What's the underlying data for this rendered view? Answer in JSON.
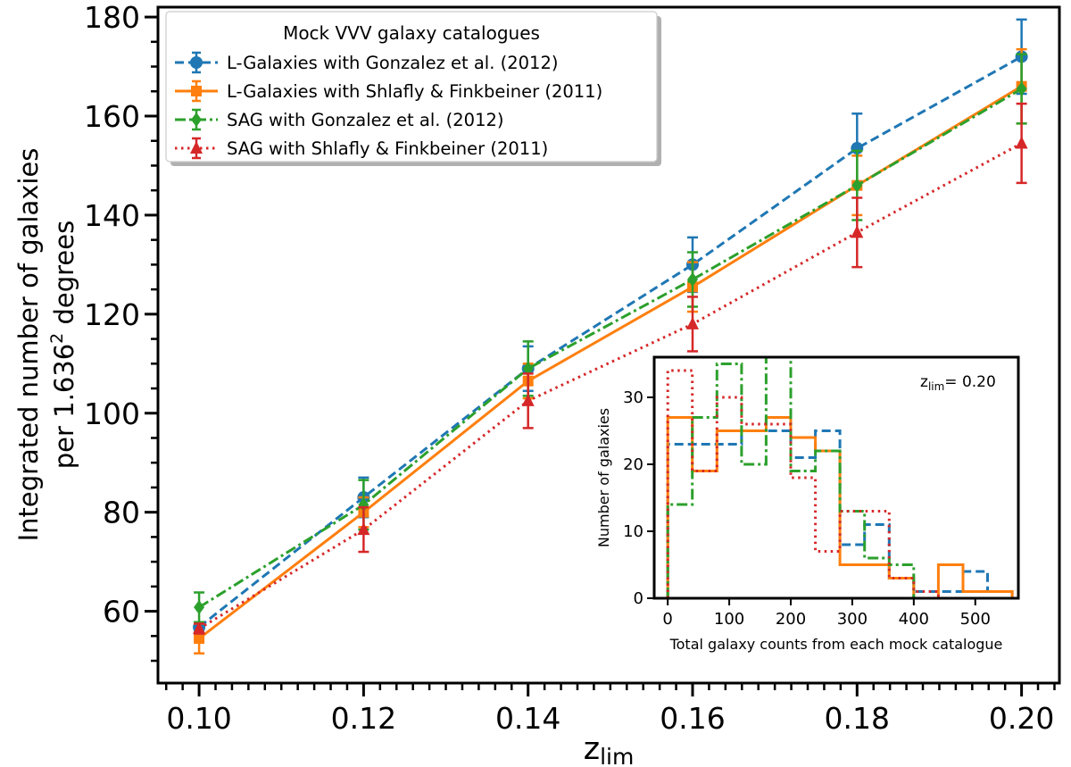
{
  "chart_data": [
    {
      "type": "line",
      "title": "",
      "xlabel": "z",
      "xlabel_sub": "lim",
      "ylabel_line1": "Integrated number of galaxies",
      "ylabel_line2_pre": "per 1.636",
      "ylabel_line2_sup": "2",
      "ylabel_line2_post": " degrees",
      "xlim": [
        0.095,
        0.2046
      ],
      "ylim": [
        45.5,
        182
      ],
      "x": [
        0.1,
        0.12,
        0.14,
        0.16,
        0.18,
        0.2
      ],
      "xticks": [
        0.1,
        0.12,
        0.14,
        0.16,
        0.18,
        0.2
      ],
      "xtick_labels": [
        "0.10",
        "0.12",
        "0.14",
        "0.16",
        "0.18",
        "0.20"
      ],
      "yticks": [
        60,
        80,
        100,
        120,
        140,
        160,
        180
      ],
      "ytick_labels": [
        "60",
        "80",
        "100",
        "120",
        "140",
        "160",
        "180"
      ],
      "grid": false,
      "legend": {
        "title": "Mock VVV galaxy catalogues",
        "position": "upper-left"
      },
      "series": [
        {
          "name": "L-Galaxies with Gonzalez et al. (2012)",
          "color": "#1f77b4",
          "linestyle": "dashed",
          "marker": "circle",
          "values": [
            56.8,
            83.0,
            109.0,
            130.0,
            153.5,
            172.0
          ],
          "errors": [
            1.0,
            4.0,
            4.5,
            5.5,
            7.0,
            7.5
          ]
        },
        {
          "name": "L-Galaxies with Shlafly & Finkbeiner (2011)",
          "color": "#ff7f0e",
          "linestyle": "solid",
          "marker": "square",
          "values": [
            54.5,
            80.0,
            106.5,
            125.5,
            146.0,
            166.0
          ],
          "errors": [
            3.0,
            3.0,
            3.5,
            5.0,
            6.0,
            7.5
          ]
        },
        {
          "name": "SAG with Gonzalez et al. (2012)",
          "color": "#2ca02c",
          "linestyle": "dashdot",
          "marker": "diamond",
          "values": [
            60.8,
            81.5,
            109.0,
            127.0,
            146.0,
            165.5
          ],
          "errors": [
            3.0,
            5.0,
            5.5,
            5.5,
            7.0,
            7.0
          ]
        },
        {
          "name": "SAG with Shlafly & Finkbeiner (2011)",
          "color": "#d62728",
          "linestyle": "dotted",
          "marker": "triangle",
          "values": [
            56.5,
            76.5,
            102.5,
            118.0,
            136.5,
            154.5
          ],
          "errors": [
            1.0,
            4.5,
            5.5,
            5.5,
            7.0,
            8.0
          ]
        }
      ]
    },
    {
      "type": "histogram",
      "title": "",
      "annotation": "= 0.20",
      "annotation_symbol": "z",
      "annotation_sub": "lim",
      "xlabel": "Total galaxy counts from each mock catalogue",
      "ylabel": "Number of galaxies",
      "xlim": [
        -22,
        570
      ],
      "ylim": [
        0,
        36
      ],
      "xticks": [
        0,
        100,
        200,
        300,
        400,
        500
      ],
      "xtick_labels": [
        "0",
        "100",
        "200",
        "300",
        "400",
        "500"
      ],
      "yticks": [
        0,
        10,
        20,
        30
      ],
      "ytick_labels": [
        "0",
        "10",
        "20",
        "30"
      ],
      "bin_edges": [
        0,
        40,
        80,
        120,
        160,
        200,
        240,
        280,
        320,
        360,
        400,
        440,
        480,
        520,
        560
      ],
      "series": [
        {
          "color": "#1f77b4",
          "linestyle": "dashed",
          "counts": [
            23,
            23,
            23,
            25,
            25,
            21,
            25,
            8,
            11,
            3,
            1,
            1,
            4,
            1
          ]
        },
        {
          "color": "#ff7f0e",
          "linestyle": "solid",
          "counts": [
            27,
            19,
            25,
            25,
            27,
            24,
            22,
            5,
            5,
            3,
            0,
            5,
            1,
            1
          ]
        },
        {
          "color": "#2ca02c",
          "linestyle": "dashdot",
          "counts": [
            14,
            27,
            35,
            20,
            36,
            19,
            22,
            13,
            6,
            5,
            0,
            0,
            0,
            0
          ]
        },
        {
          "color": "#d62728",
          "linestyle": "dotted",
          "counts": [
            34,
            19,
            30,
            26,
            26,
            18,
            7,
            13,
            13,
            3,
            1,
            0,
            0,
            0
          ]
        }
      ]
    }
  ]
}
